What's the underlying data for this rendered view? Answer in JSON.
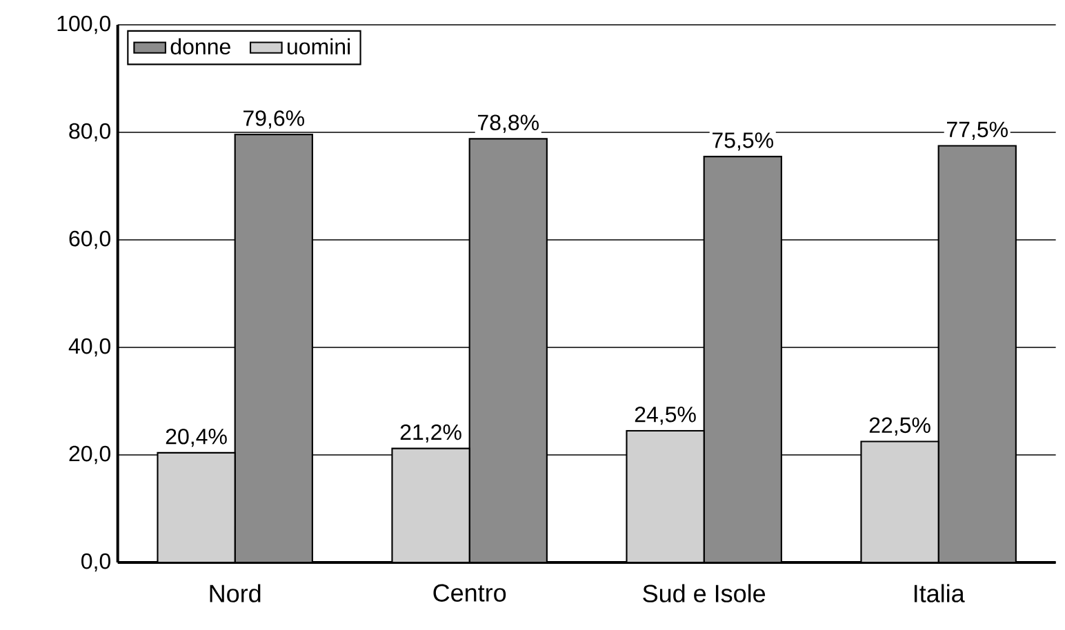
{
  "chart_data": {
    "type": "bar",
    "categories": [
      "Nord",
      "Centro",
      "Sud e Isole",
      "Italia"
    ],
    "series": [
      {
        "name": "donne",
        "color": "#8c8c8c",
        "values": [
          79.6,
          78.8,
          75.5,
          77.5
        ],
        "value_labels": [
          "79,6%",
          "78,8%",
          "75,5%",
          "77,5%"
        ]
      },
      {
        "name": "uomini",
        "color": "#d0d0d0",
        "values": [
          20.4,
          21.2,
          24.5,
          22.5
        ],
        "value_labels": [
          "20,4%",
          "21,2%",
          "24,5%",
          "22,5%"
        ]
      }
    ],
    "ylim": [
      0,
      100
    ],
    "yticks": [
      {
        "value": 0,
        "label": "0,0"
      },
      {
        "value": 20,
        "label": "20,0"
      },
      {
        "value": 40,
        "label": "40,0"
      },
      {
        "value": 60,
        "label": "60,0"
      },
      {
        "value": 80,
        "label": "80,0"
      },
      {
        "value": 100,
        "label": "100,0"
      }
    ],
    "grid": "y",
    "legend": "top left"
  }
}
